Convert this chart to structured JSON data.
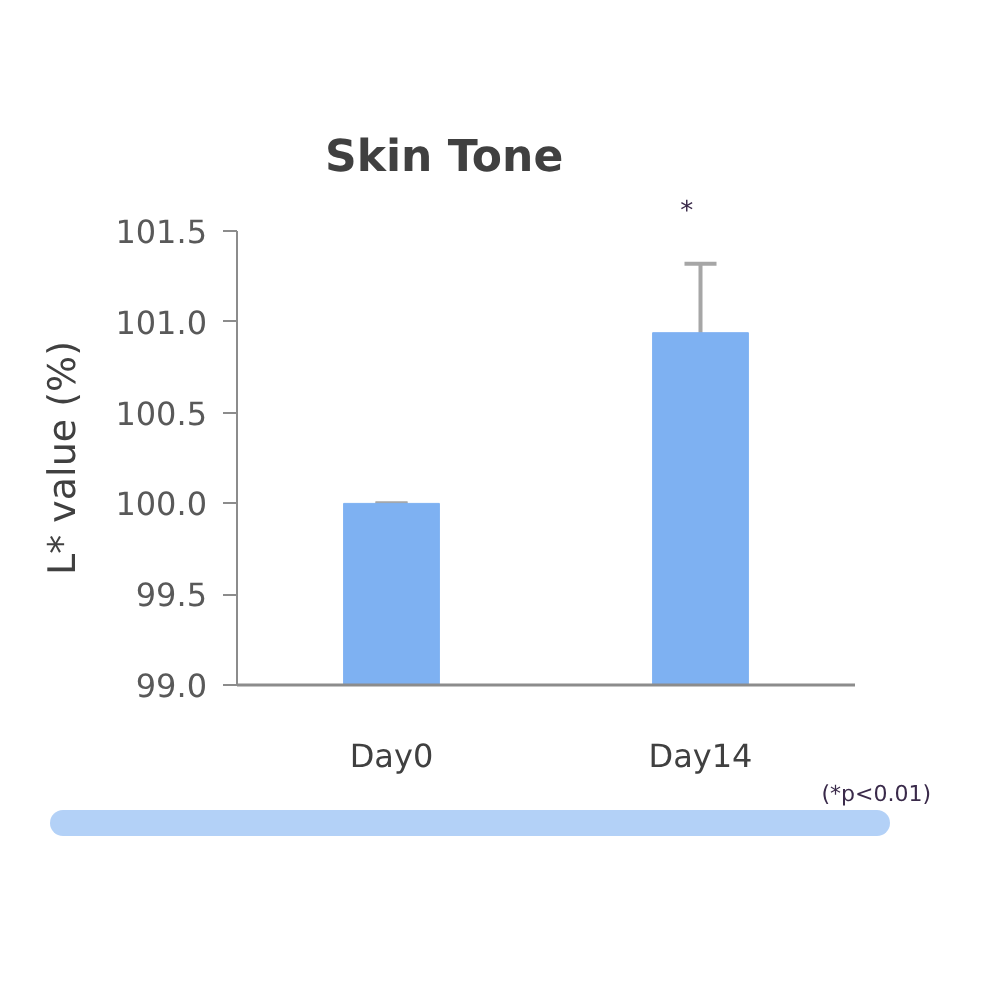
{
  "chart_data": {
    "type": "bar",
    "title": "Skin Tone",
    "ylabel": "L* value (%)",
    "categories": [
      "Day0",
      "Day14"
    ],
    "values": [
      100.0,
      100.94
    ],
    "errors": [
      0,
      0.38
    ],
    "color": "#7eb1f2",
    "ylim": [
      99,
      101.5
    ],
    "yticks": [
      {
        "value": 99,
        "label": "99.0"
      },
      99.5,
      {
        "value": 100,
        "label": "100.0"
      },
      100.5,
      {
        "value": 101,
        "label": "101.0"
      },
      101.5
    ],
    "annotations": [
      "*",
      "(*p<0.01)"
    ]
  }
}
